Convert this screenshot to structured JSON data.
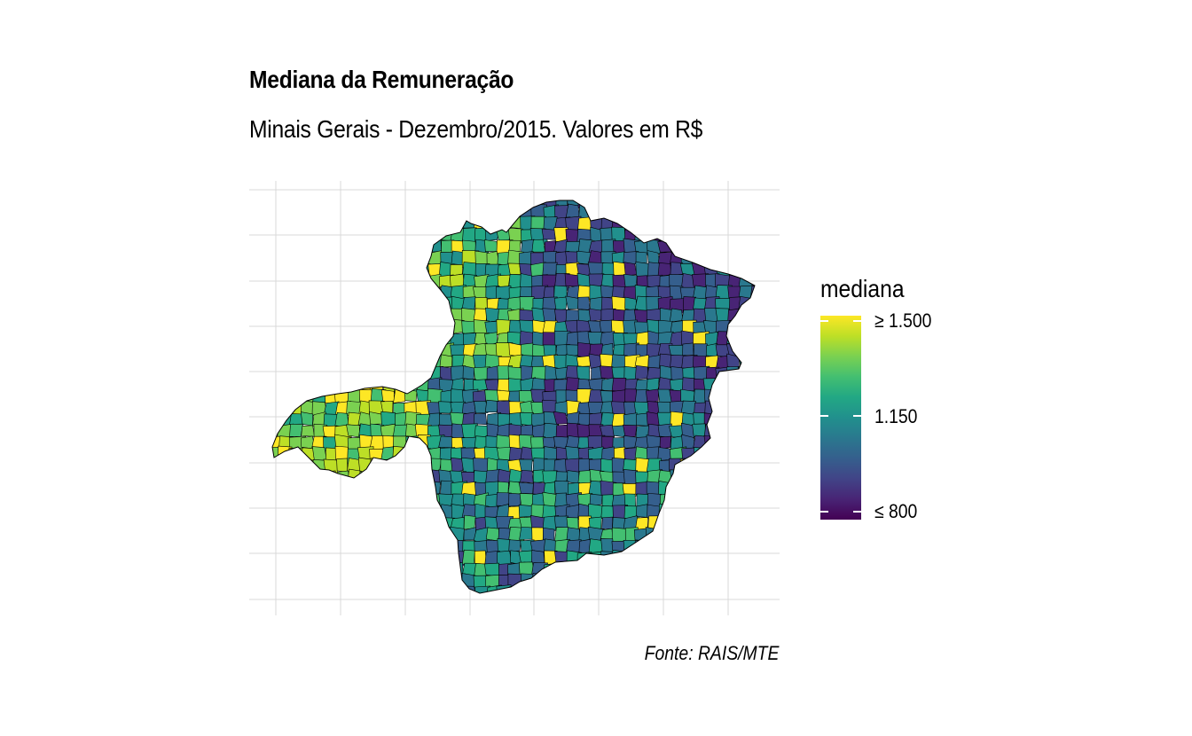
{
  "title": "Mediana da Remuneração",
  "subtitle": "Minais Gerais - Dezembro/2015. Valores em R$",
  "caption": "Fonte: RAIS/MTE",
  "legend": {
    "title": "mediana",
    "labels": [
      "≥ 1.500",
      "1.150",
      "≤ 800"
    ],
    "min": 800,
    "max": 1500,
    "colors": [
      "#440154",
      "#482475",
      "#414487",
      "#355f8d",
      "#2a788e",
      "#21908d",
      "#22a884",
      "#43bf71",
      "#7ad151",
      "#bddf26",
      "#fde725"
    ]
  },
  "map": {
    "region": "Minas Gerais",
    "fill_variable": "mediana",
    "border_color": "#000000",
    "grid": true
  }
}
